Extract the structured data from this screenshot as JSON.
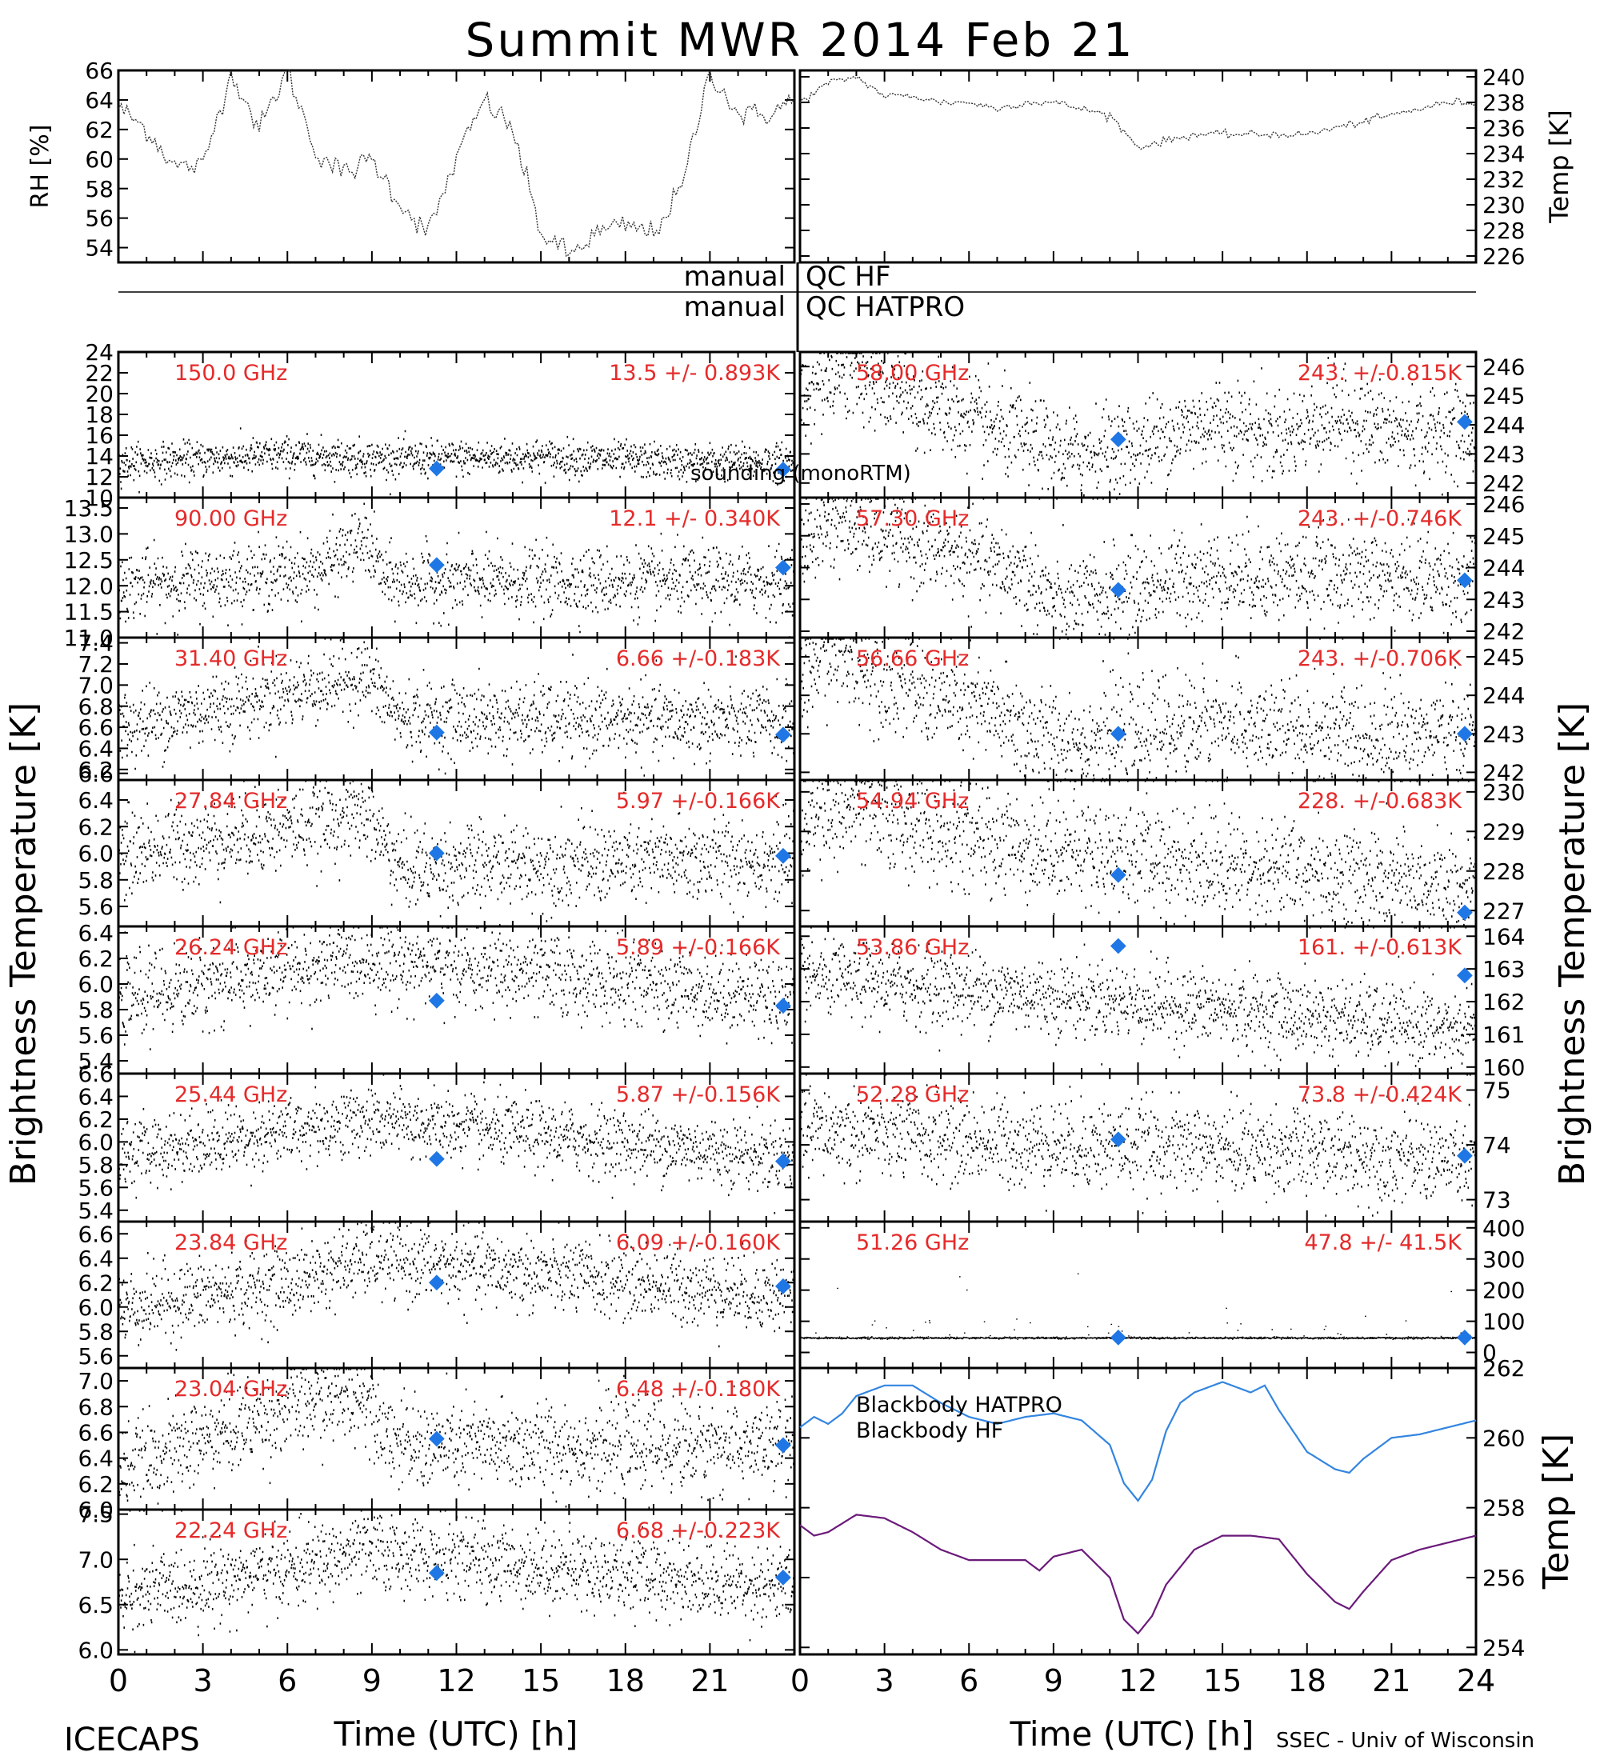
{
  "title": "Summit MWR 2014 Feb 21",
  "footer_left": "ICECAPS",
  "footer_right": "SSEC - Univ of Wisconsin",
  "xlabel": "Time (UTC) [h]",
  "ylabel_left": "Brightness Temperature [K]",
  "ylabel_right": "Brightness Temperature [K]",
  "qc_left": [
    "manual",
    "manual"
  ],
  "qc_right": [
    "QC HF",
    "QC HATPRO"
  ],
  "colors": {
    "stats": "#e52a2a",
    "sounding": "#1f77e6",
    "bb_hatpro": "#3385e0",
    "bb_hf": "#6b1a7a"
  },
  "chart_data": [
    {
      "type": "line",
      "panel": "rh",
      "ylabel": "RH [%]",
      "ylim": [
        53,
        66
      ],
      "yticks": [
        54,
        56,
        58,
        60,
        62,
        64,
        66
      ],
      "xlim": [
        0,
        24
      ],
      "x": [
        0,
        1,
        2,
        3,
        4,
        5,
        6,
        7,
        8,
        9,
        10,
        11,
        12,
        13,
        14,
        15,
        16,
        17,
        18,
        19,
        20,
        21,
        22,
        23,
        24
      ],
      "values": [
        63.5,
        62,
        59.5,
        59.5,
        66,
        62,
        66,
        60.5,
        59,
        60,
        57,
        55,
        60,
        64,
        62,
        55,
        53.5,
        55,
        55.5,
        55,
        58,
        66,
        63,
        63,
        64
      ]
    },
    {
      "type": "line",
      "panel": "temp",
      "ylabel": "Temp [K]",
      "ylim": [
        225.5,
        240.5
      ],
      "yticks": [
        226,
        228,
        230,
        232,
        234,
        236,
        238,
        240
      ],
      "xlim": [
        0,
        24
      ],
      "x": [
        0,
        1,
        2,
        3,
        4,
        5,
        6,
        7,
        8,
        9,
        10,
        11,
        12,
        13,
        14,
        15,
        16,
        17,
        18,
        19,
        20,
        21,
        22,
        23,
        24
      ],
      "values": [
        238,
        239.5,
        240,
        238.5,
        238.5,
        238,
        238,
        237.5,
        238,
        238,
        237.5,
        237,
        234.5,
        235,
        235.5,
        235.5,
        235.5,
        235.5,
        235.5,
        236,
        236.5,
        237,
        237.5,
        238,
        238
      ]
    },
    {
      "type": "scatter",
      "freq": "150.0 GHz",
      "stats": "13.5 +/- 0.893K",
      "ylim": [
        10,
        24
      ],
      "yticks": [
        10,
        12,
        14,
        16,
        18,
        20,
        22,
        24
      ],
      "mean": 13.5,
      "sd": 0.893,
      "sounding": [
        [
          11.3,
          12.8
        ],
        [
          23.6,
          12.7
        ]
      ],
      "note": "sounding (monoRTM)",
      "wave": [
        [
          0,
          13.4
        ],
        [
          6,
          14.2
        ],
        [
          10,
          13.8
        ],
        [
          15,
          14.0
        ],
        [
          20,
          13.5
        ],
        [
          24,
          13.6
        ]
      ]
    },
    {
      "type": "scatter",
      "freq": "90.00 GHz",
      "stats": "12.1 +/- 0.340K",
      "ylim": [
        11,
        13.7
      ],
      "yticks": [
        11.0,
        11.5,
        12.0,
        12.5,
        13.0,
        13.5
      ],
      "mean": 12.1,
      "sd": 0.34,
      "sounding": [
        [
          11.3,
          12.4
        ],
        [
          23.6,
          12.35
        ]
      ],
      "wave": [
        [
          0,
          12.0
        ],
        [
          7,
          12.3
        ],
        [
          8.8,
          12.9
        ],
        [
          9.5,
          12.1
        ],
        [
          24,
          12.1
        ]
      ]
    },
    {
      "type": "scatter",
      "freq": "31.40 GHz",
      "stats": "6.66 +/-0.183K",
      "ylim": [
        6.1,
        7.45
      ],
      "yticks": [
        6.2,
        6.4,
        6.6,
        6.8,
        7.0,
        7.2,
        7.4
      ],
      "mean": 6.66,
      "sd": 0.183,
      "sounding": [
        [
          11.3,
          6.55
        ],
        [
          23.6,
          6.53
        ]
      ],
      "wave": [
        [
          0,
          6.6
        ],
        [
          8.8,
          7.1
        ],
        [
          10,
          6.7
        ],
        [
          24,
          6.65
        ]
      ]
    },
    {
      "type": "scatter",
      "freq": "27.84 GHz",
      "stats": "5.97 +/-0.166K",
      "ylim": [
        5.45,
        6.55
      ],
      "yticks": [
        5.6,
        5.8,
        6.0,
        6.2,
        6.4,
        6.6
      ],
      "mean": 5.97,
      "sd": 0.166,
      "sounding": [
        [
          11.3,
          6.0
        ],
        [
          23.6,
          5.98
        ]
      ],
      "wave": [
        [
          0,
          6.0
        ],
        [
          8.8,
          6.3
        ],
        [
          10,
          5.9
        ],
        [
          24,
          5.97
        ]
      ]
    },
    {
      "type": "scatter",
      "freq": "26.24 GHz",
      "stats": "5.89 +/-0.166K",
      "ylim": [
        5.3,
        6.45
      ],
      "yticks": [
        5.4,
        5.6,
        5.8,
        6.0,
        6.2,
        6.4
      ],
      "mean": 5.89,
      "sd": 0.166,
      "sounding": [
        [
          11.3,
          5.87
        ],
        [
          23.6,
          5.83
        ]
      ],
      "wave": [
        [
          0,
          5.9
        ],
        [
          8.8,
          6.2
        ],
        [
          24,
          5.9
        ]
      ]
    },
    {
      "type": "scatter",
      "freq": "25.44 GHz",
      "stats": "5.87 +/-0.156K",
      "ylim": [
        5.3,
        6.6
      ],
      "yticks": [
        5.4,
        5.6,
        5.8,
        6.0,
        6.2,
        6.4,
        6.6
      ],
      "mean": 5.87,
      "sd": 0.156,
      "sounding": [
        [
          11.3,
          5.85
        ],
        [
          23.6,
          5.83
        ]
      ],
      "wave": [
        [
          0,
          5.9
        ],
        [
          8.8,
          6.2
        ],
        [
          24,
          5.87
        ]
      ]
    },
    {
      "type": "scatter",
      "freq": "23.84 GHz",
      "stats": "6.09 +/-0.160K",
      "ylim": [
        5.5,
        6.7
      ],
      "yticks": [
        5.6,
        5.8,
        6.0,
        6.2,
        6.4,
        6.6
      ],
      "mean": 6.09,
      "sd": 0.16,
      "sounding": [
        [
          11.3,
          6.2
        ],
        [
          23.6,
          6.17
        ]
      ],
      "wave": [
        [
          0,
          6.0
        ],
        [
          6,
          6.2
        ],
        [
          8.8,
          6.4
        ],
        [
          24,
          6.1
        ]
      ]
    },
    {
      "type": "scatter",
      "freq": "23.04 GHz",
      "stats": "6.48 +/-0.180K",
      "ylim": [
        6.0,
        7.1
      ],
      "yticks": [
        6.0,
        6.2,
        6.4,
        6.6,
        6.8,
        7.0
      ],
      "mean": 6.48,
      "sd": 0.18,
      "sounding": [
        [
          11.3,
          6.55
        ],
        [
          23.6,
          6.5
        ]
      ],
      "wave": [
        [
          0,
          6.3
        ],
        [
          6,
          6.8
        ],
        [
          8.8,
          6.9
        ],
        [
          10,
          6.5
        ],
        [
          24,
          6.5
        ]
      ]
    },
    {
      "type": "scatter",
      "freq": "22.24 GHz",
      "stats": "6.68 +/-0.223K",
      "ylim": [
        5.95,
        7.55
      ],
      "yticks": [
        6.0,
        6.5,
        7.0,
        7.5
      ],
      "mean": 6.68,
      "sd": 0.223,
      "sounding": [
        [
          11.3,
          6.85
        ],
        [
          23.6,
          6.8
        ]
      ],
      "wave": [
        [
          0,
          6.6
        ],
        [
          6,
          6.9
        ],
        [
          8.8,
          7.1
        ],
        [
          24,
          6.7
        ]
      ]
    },
    {
      "type": "scatter",
      "freq": "58.00 GHz",
      "stats": "243. +/-0.815K",
      "ylim": [
        241.5,
        246.5
      ],
      "yticks": [
        242,
        243,
        244,
        245,
        246
      ],
      "mean": 243,
      "sd": 0.815,
      "sounding": [
        [
          11.3,
          243.5
        ],
        [
          23.6,
          244.1
        ]
      ],
      "wave": [
        [
          0,
          245
        ],
        [
          1.5,
          246
        ],
        [
          4,
          244.8
        ],
        [
          8,
          243.5
        ],
        [
          9.5,
          243
        ],
        [
          12,
          243.3
        ],
        [
          14,
          244
        ],
        [
          15,
          244.2
        ],
        [
          17,
          243.6
        ],
        [
          19,
          244.3
        ],
        [
          21,
          243.8
        ],
        [
          24,
          243.8
        ]
      ]
    },
    {
      "type": "scatter",
      "freq": "57.30 GHz",
      "stats": "243. +/-0.746K",
      "ylim": [
        241.8,
        246.2
      ],
      "yticks": [
        242,
        243,
        244,
        245,
        246
      ],
      "mean": 243,
      "sd": 0.746,
      "sounding": [
        [
          11.3,
          243.3
        ],
        [
          23.6,
          243.6
        ]
      ],
      "wave": [
        [
          0,
          244.5
        ],
        [
          1,
          245.5
        ],
        [
          4,
          244.8
        ],
        [
          8,
          243.8
        ],
        [
          9.2,
          242.8
        ],
        [
          11,
          243.2
        ],
        [
          14,
          243.8
        ],
        [
          20,
          243.8
        ],
        [
          24,
          243.6
        ]
      ]
    },
    {
      "type": "scatter",
      "freq": "56.66 GHz",
      "stats": "243. +/-0.706K",
      "ylim": [
        241.8,
        245.5
      ],
      "yticks": [
        242,
        243,
        244,
        245
      ],
      "mean": 243,
      "sd": 0.706,
      "sounding": [
        [
          11.3,
          243
        ],
        [
          23.6,
          243
        ]
      ],
      "wave": [
        [
          0,
          244.3
        ],
        [
          1,
          245.2
        ],
        [
          4,
          244.2
        ],
        [
          7,
          243.5
        ],
        [
          9,
          242.8
        ],
        [
          12,
          243
        ],
        [
          14,
          243.3
        ],
        [
          18,
          243
        ],
        [
          24,
          243
        ]
      ]
    },
    {
      "type": "scatter",
      "freq": "54.94 GHz",
      "stats": "228. +/-0.683K",
      "ylim": [
        226.6,
        230.3
      ],
      "yticks": [
        227,
        228,
        229,
        230
      ],
      "mean": 228,
      "sd": 0.683,
      "sounding": [
        [
          11.3,
          227.9
        ],
        [
          23.6,
          226.95
        ]
      ],
      "wave": [
        [
          0,
          229.2
        ],
        [
          2,
          229.6
        ],
        [
          6,
          228.8
        ],
        [
          12,
          228.4
        ],
        [
          18,
          228.0
        ],
        [
          24,
          227.5
        ]
      ]
    },
    {
      "type": "scatter",
      "freq": "53.86 GHz",
      "stats": "161. +/-0.613K",
      "ylim": [
        159.8,
        164.3
      ],
      "yticks": [
        160,
        161,
        162,
        163,
        164
      ],
      "mean": 161,
      "sd": 0.613,
      "sounding": [
        [
          11.3,
          163.7
        ],
        [
          23.6,
          162.8
        ]
      ],
      "wave": [
        [
          0,
          162.8
        ],
        [
          6,
          162.4
        ],
        [
          12,
          162.0
        ],
        [
          18,
          161.6
        ],
        [
          24,
          161.1
        ]
      ]
    },
    {
      "type": "scatter",
      "freq": "52.28 GHz",
      "stats": "73.8 +/-0.424K",
      "ylim": [
        72.6,
        75.3
      ],
      "yticks": [
        73,
        74,
        75
      ],
      "mean": 73.8,
      "sd": 0.424,
      "sounding": [
        [
          11.3,
          74.1
        ],
        [
          23.6,
          73.8
        ]
      ],
      "wave": [
        [
          0,
          74.3
        ],
        [
          6,
          74.1
        ],
        [
          12,
          74.0
        ],
        [
          18,
          73.9
        ],
        [
          24,
          73.7
        ]
      ]
    },
    {
      "type": "scatter",
      "freq": "51.26 GHz",
      "stats": "47.8 +/- 41.5K",
      "ylim": [
        -50,
        420
      ],
      "yticks": [
        0,
        100,
        200,
        300,
        400
      ],
      "mean": 47.8,
      "sd": 41.5,
      "sounding": [
        [
          11.3,
          48
        ],
        [
          23.6,
          48
        ]
      ],
      "wave": [
        [
          0,
          48
        ],
        [
          24,
          48
        ]
      ]
    },
    {
      "type": "line",
      "panel": "blackbody",
      "ylabel": "Temp [K]",
      "ylim": [
        253.8,
        262
      ],
      "yticks": [
        254,
        256,
        258,
        260,
        262
      ],
      "xlim": [
        0,
        24
      ],
      "series": [
        {
          "name": "Blackbody HATPRO",
          "x": [
            0,
            0.5,
            1,
            1.5,
            2,
            3,
            4,
            5,
            6,
            7,
            8,
            9,
            10,
            11,
            11.5,
            12,
            12.5,
            13,
            13.5,
            14,
            15,
            16,
            16.5,
            17,
            18,
            19,
            19.5,
            20,
            21,
            22,
            23,
            24
          ],
          "values": [
            260.3,
            260.6,
            260.4,
            260.7,
            261.2,
            261.5,
            261.5,
            261.0,
            260.6,
            260.4,
            260.6,
            260.7,
            260.5,
            259.8,
            258.7,
            258.2,
            258.8,
            260.2,
            261.0,
            261.3,
            261.6,
            261.3,
            261.5,
            260.8,
            259.6,
            259.1,
            259.0,
            259.4,
            260.0,
            260.1,
            260.3,
            260.5
          ]
        },
        {
          "name": "Blackbody HF",
          "x": [
            0,
            0.5,
            1,
            2,
            3,
            4,
            5,
            6,
            7,
            8,
            8.5,
            9,
            10,
            11,
            11.5,
            12,
            12.5,
            13,
            14,
            15,
            16,
            17,
            18,
            19,
            19.5,
            20,
            21,
            22,
            23,
            24
          ],
          "values": [
            257.5,
            257.2,
            257.3,
            257.8,
            257.7,
            257.3,
            256.8,
            256.5,
            256.5,
            256.5,
            256.2,
            256.6,
            256.8,
            256.0,
            254.8,
            254.4,
            254.9,
            255.8,
            256.8,
            257.2,
            257.2,
            257.1,
            256.1,
            255.3,
            255.1,
            255.6,
            256.5,
            256.8,
            257.0,
            257.2
          ]
        }
      ]
    }
  ],
  "xticks_left": [
    "0",
    "3",
    "6",
    "9",
    "12",
    "15",
    "18",
    "21"
  ],
  "xticks_right": [
    "0",
    "3",
    "6",
    "9",
    "12",
    "15",
    "18",
    "21",
    "24"
  ]
}
